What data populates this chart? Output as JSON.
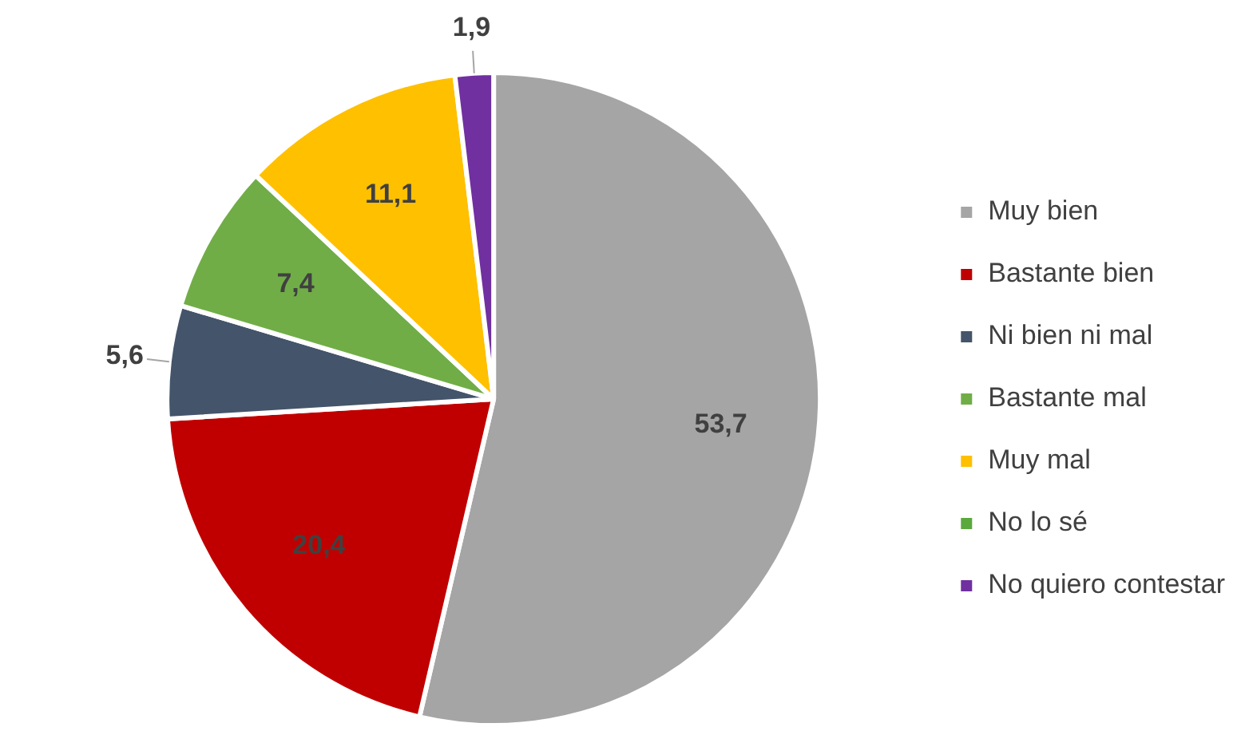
{
  "chart_data": {
    "type": "pie",
    "categories": [
      "Muy bien",
      "Bastante bien",
      "Ni bien ni mal",
      "Bastante mal",
      "Muy mal",
      "No lo sé",
      "No quiero contestar"
    ],
    "values": [
      53.7,
      20.4,
      5.6,
      7.4,
      11.1,
      0,
      1.9
    ],
    "value_labels": [
      "53,7",
      "20,4",
      "5,6",
      "7,4",
      "11,1",
      null,
      "1,9"
    ],
    "colors": [
      "#a5a5a5",
      "#c00000",
      "#44546a",
      "#70ad47",
      "#ffc000",
      "#5ba83c",
      "#7030a0"
    ],
    "legend": "right"
  }
}
